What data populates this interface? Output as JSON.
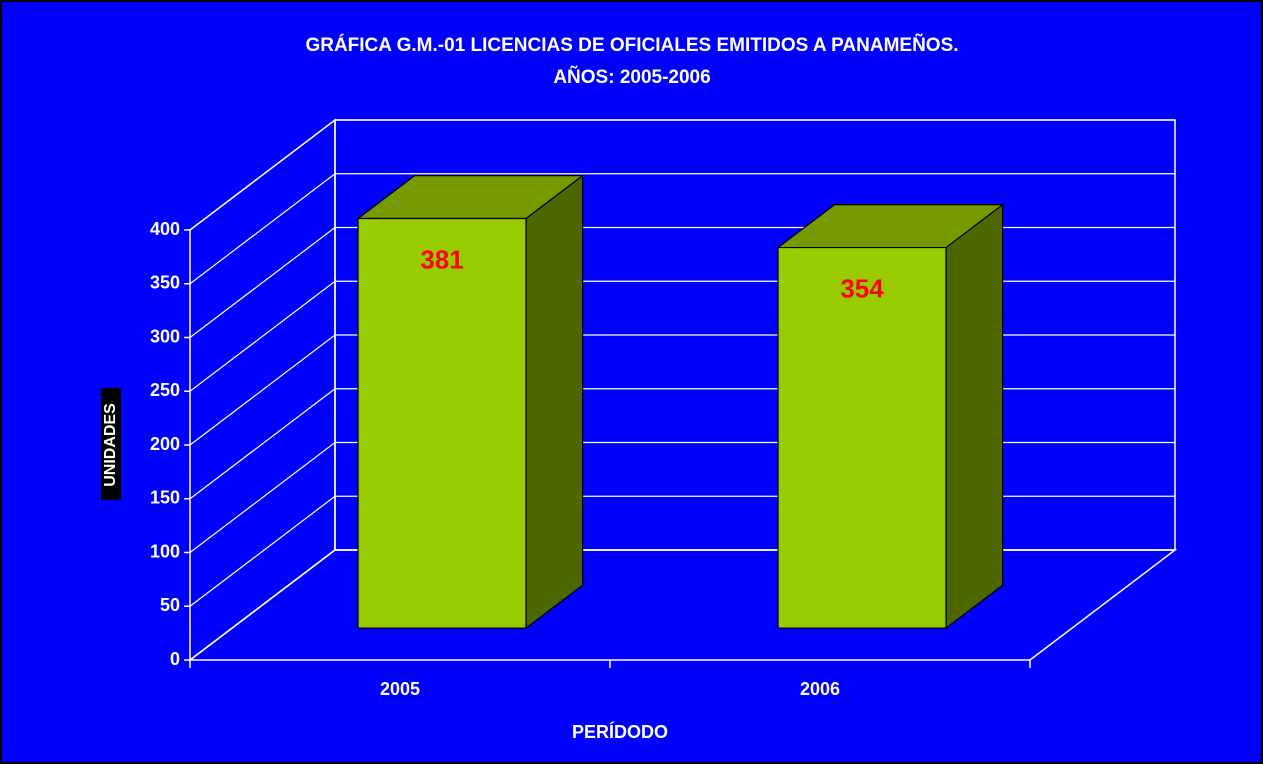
{
  "chart_data": {
    "type": "bar",
    "title": "GRÁFICA G.M.-01 LICENCIAS DE OFICIALES EMITIDOS A PANAMEÑOS.",
    "subtitle": "AÑOS: 2005-2006",
    "x_label": "PERÍDODO",
    "y_label": "UNIDADES",
    "categories": [
      "2005",
      "2006"
    ],
    "values": [
      381,
      354
    ],
    "color": "#99cc00",
    "label_color": "#ff0000",
    "background": "#0000ff",
    "ylim": [
      0,
      400
    ],
    "yticks": [
      0,
      50,
      100,
      150,
      200,
      250,
      300,
      350,
      400
    ],
    "grid": true
  }
}
